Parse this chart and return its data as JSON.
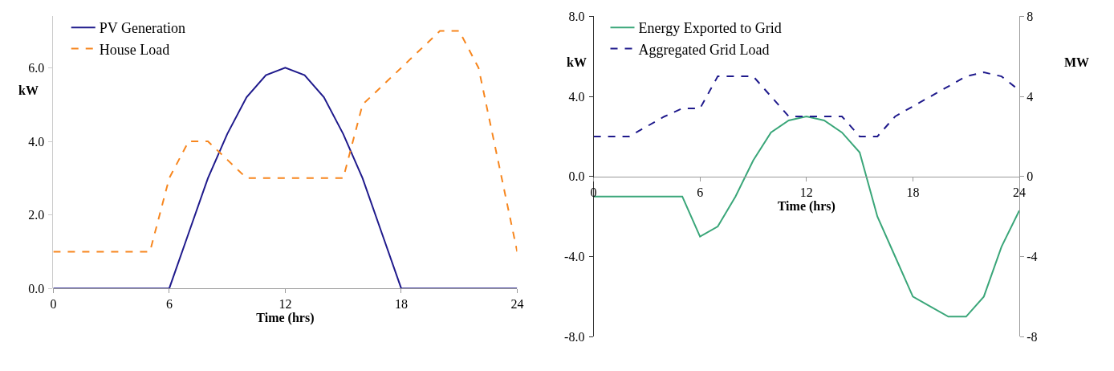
{
  "chart_data": [
    {
      "type": "line",
      "xlabel": "Time (hrs)",
      "ylabel": "kW",
      "x": [
        0,
        1,
        2,
        3,
        4,
        5,
        6,
        7,
        8,
        9,
        10,
        11,
        12,
        13,
        14,
        15,
        16,
        17,
        18,
        19,
        20,
        21,
        22,
        23,
        24
      ],
      "series": [
        {
          "name": "PV Generation",
          "color": "#1f1a8c",
          "line_style": "solid",
          "values": [
            0,
            0,
            0,
            0,
            0,
            0,
            0,
            1.5,
            3.0,
            4.2,
            5.2,
            5.8,
            6.0,
            5.8,
            5.2,
            4.2,
            3.0,
            1.5,
            0,
            0,
            0,
            0,
            0,
            0,
            0
          ]
        },
        {
          "name": "House Load",
          "color": "#f7861e",
          "line_style": "dashed",
          "values": [
            1.0,
            1.0,
            1.0,
            1.0,
            1.0,
            1.0,
            3.0,
            4.0,
            4.0,
            3.5,
            3.0,
            3.0,
            3.0,
            3.0,
            3.0,
            3.0,
            5.0,
            5.5,
            6.0,
            6.5,
            7.0,
            7.0,
            6.0,
            3.5,
            1.0
          ]
        }
      ],
      "xlim": [
        0,
        24
      ],
      "xticks": [
        0,
        6,
        12,
        18,
        24
      ],
      "ylim": [
        0,
        7.4
      ],
      "yticks": [
        {
          "value": 0,
          "label": "0.0"
        },
        {
          "value": 2,
          "label": "2.0"
        },
        {
          "value": 4,
          "label": "4.0"
        },
        {
          "value": 6,
          "label": "6.0"
        }
      ],
      "legend": "top left",
      "marker": "none"
    },
    {
      "type": "line",
      "xlabel": "Time (hrs)",
      "ylabel": "kW",
      "y2label": "MW",
      "x": [
        0,
        1,
        2,
        3,
        4,
        5,
        6,
        7,
        8,
        9,
        10,
        11,
        12,
        13,
        14,
        15,
        16,
        17,
        18,
        19,
        20,
        21,
        22,
        23,
        24
      ],
      "series": [
        {
          "name": "Energy Exported to Grid",
          "color": "#3aa679",
          "line_style": "solid",
          "values": [
            -1.0,
            -1.0,
            -1.0,
            -1.0,
            -1.0,
            -1.0,
            -3.0,
            -2.5,
            -1.0,
            0.8,
            2.2,
            2.8,
            3.0,
            2.8,
            2.2,
            1.2,
            -2.0,
            -4.0,
            -6.0,
            -6.5,
            -7.0,
            -7.0,
            -6.0,
            -3.5,
            -1.7
          ]
        },
        {
          "name": "Aggregated Grid Load",
          "color": "#1f1a8c",
          "line_style": "dashed",
          "axis": "y2",
          "values": [
            2.0,
            2.0,
            2.0,
            2.5,
            3.0,
            3.4,
            3.4,
            5.0,
            5.0,
            5.0,
            4.0,
            3.0,
            3.0,
            3.0,
            3.0,
            2.0,
            2.0,
            3.0,
            3.5,
            4.0,
            4.5,
            5.0,
            5.2,
            5.0,
            4.3
          ]
        }
      ],
      "xlim": [
        0,
        24
      ],
      "xticks": [
        0,
        6,
        12,
        18,
        24
      ],
      "ylim": [
        -8,
        8
      ],
      "yticks": [
        {
          "value": -8,
          "label": "-8.0"
        },
        {
          "value": -4,
          "label": "-4.0"
        },
        {
          "value": 0,
          "label": "0.0"
        },
        {
          "value": 4,
          "label": "4.0"
        },
        {
          "value": 8,
          "label": "8.0"
        }
      ],
      "y2lim": [
        -8,
        8
      ],
      "y2ticks": [
        -8,
        -4,
        0,
        4,
        8
      ],
      "legend": "top left",
      "marker": "none"
    }
  ]
}
